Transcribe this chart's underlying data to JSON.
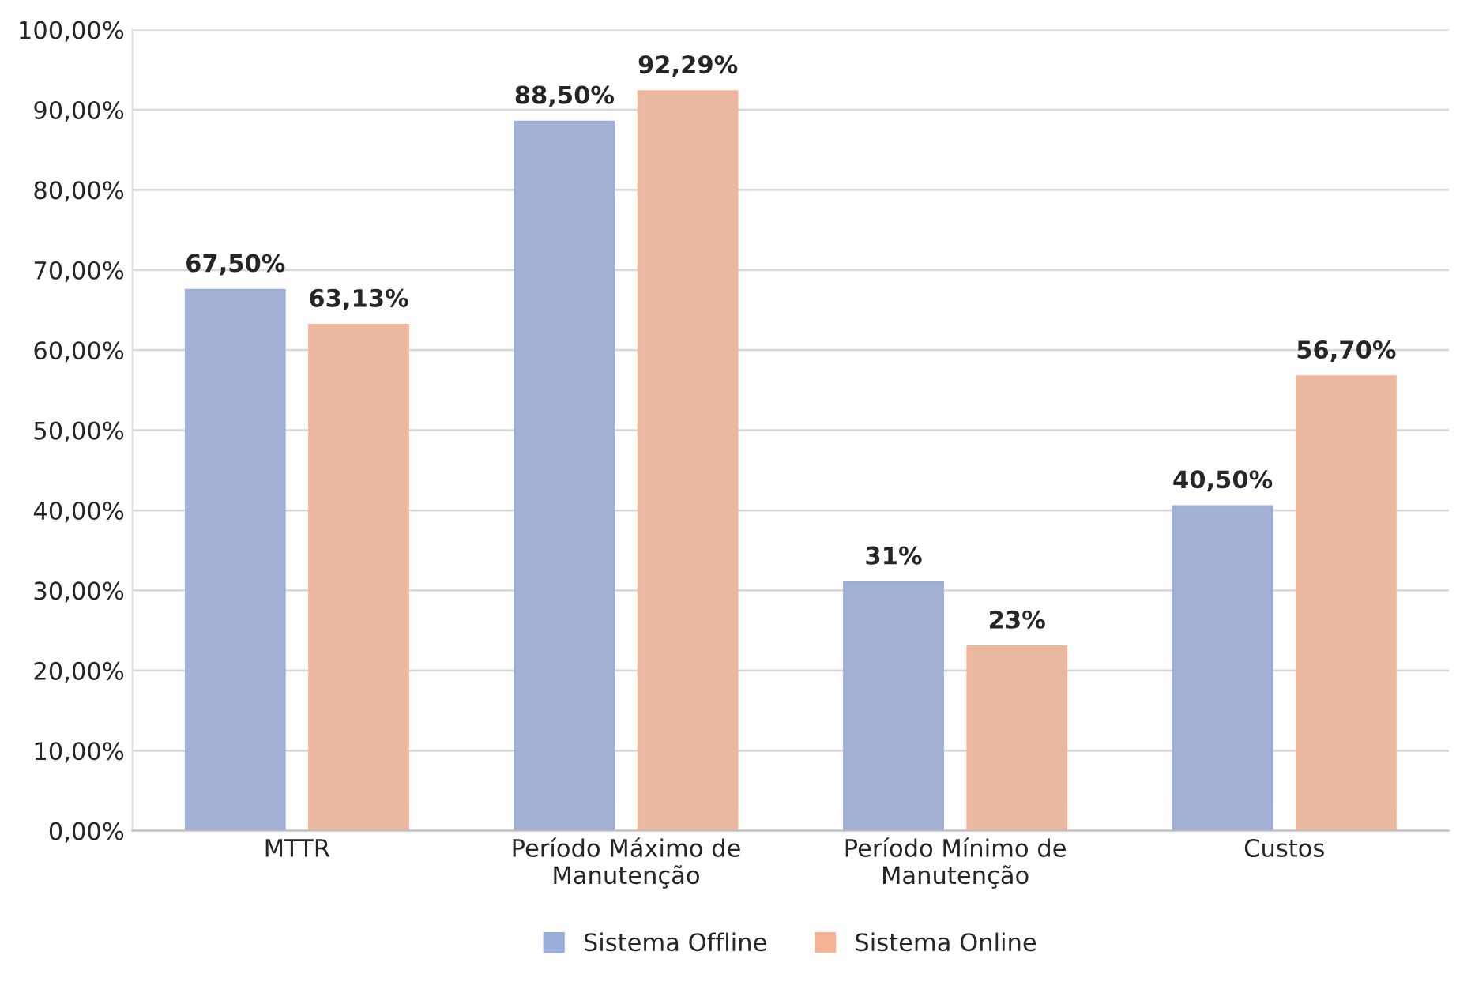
{
  "chart_data": {
    "type": "bar",
    "categories": [
      "MTTR",
      "Período Máximo de\nManutenção",
      "Período Mínimo de\nManutenção",
      "Custos"
    ],
    "series": [
      {
        "name": "Sistema Offline",
        "color": "#9aaedc",
        "values": [
          67.5,
          88.5,
          31,
          40.5
        ],
        "value_labels": [
          "67,50%",
          "88,50%",
          "31%",
          "40,50%"
        ]
      },
      {
        "name": "Sistema Online",
        "color": "#f6b496",
        "values": [
          63.13,
          92.29,
          23,
          56.7
        ],
        "value_labels": [
          "63,13%",
          "92,29%",
          "23%",
          "56,70%"
        ]
      }
    ],
    "ylim": [
      0,
      100
    ],
    "yticks": [
      {
        "value": 0,
        "label": "0,00%"
      },
      {
        "value": 10,
        "label": "10,00%"
      },
      {
        "value": 20,
        "label": "20,00%"
      },
      {
        "value": 30,
        "label": "30,00%"
      },
      {
        "value": 40,
        "label": "40,00%"
      },
      {
        "value": 50,
        "label": "50,00%"
      },
      {
        "value": 60,
        "label": "60,00%"
      },
      {
        "value": 70,
        "label": "70,00%"
      },
      {
        "value": 80,
        "label": "80,00%"
      },
      {
        "value": 90,
        "label": "90,00%"
      },
      {
        "value": 100,
        "label": "100,00%"
      }
    ],
    "grid": "y",
    "legend": "bottom"
  }
}
